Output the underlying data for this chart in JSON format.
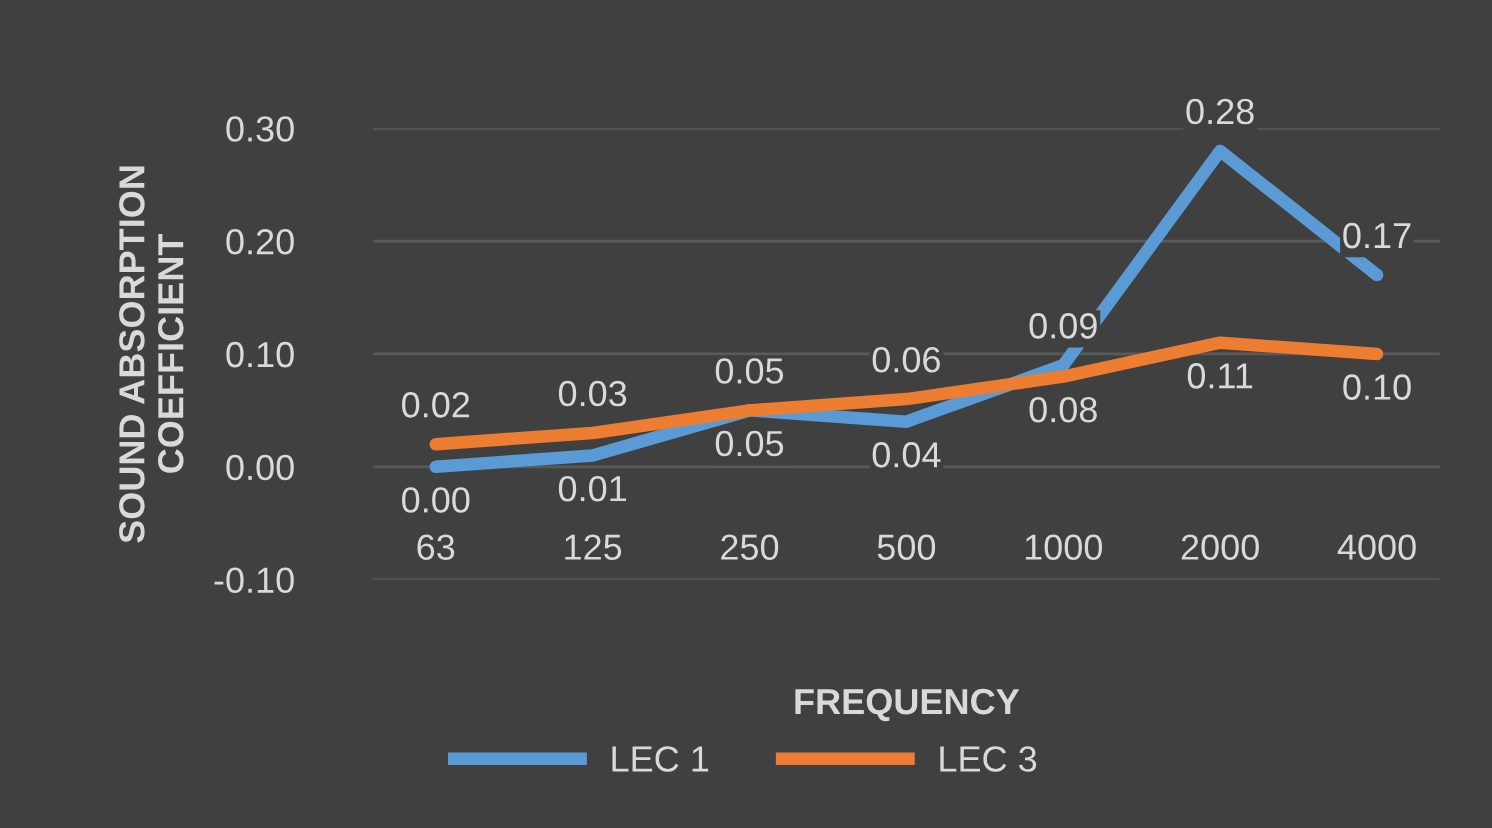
{
  "chart_data": {
    "type": "line",
    "xlabel": "FREQUENCY",
    "ylabel": "SOUND ABSORPTION\nCOEFFICIENT",
    "categories": [
      "63",
      "125",
      "250",
      "500",
      "1000",
      "2000",
      "4000"
    ],
    "series": [
      {
        "name": "LEC 1",
        "color": "#5b9bd5",
        "values": [
          0.0,
          0.01,
          0.05,
          0.04,
          0.09,
          0.28,
          0.17
        ],
        "value_labels": [
          "0.00",
          "0.01",
          "0.05",
          "0.04",
          "0.09",
          "0.28",
          "0.17"
        ]
      },
      {
        "name": "LEC 3",
        "color": "#ed7d31",
        "values": [
          0.02,
          0.03,
          0.05,
          0.06,
          0.08,
          0.11,
          0.1
        ],
        "value_labels": [
          "0.02",
          "0.03",
          "0.05",
          "0.06",
          "0.08",
          "0.11",
          "0.10"
        ]
      }
    ],
    "ylim": [
      -0.1,
      0.3
    ],
    "yticks": [
      {
        "value": -0.1,
        "label": "-0.10"
      },
      {
        "value": 0,
        "label": "0.00"
      },
      {
        "value": 0.1,
        "label": "0.10"
      },
      {
        "value": 0.2,
        "label": "0.20"
      },
      {
        "value": 0.3,
        "label": "0.30"
      }
    ],
    "grid": "y",
    "legend": "bottom",
    "marker": "none",
    "line_style": "solid"
  }
}
